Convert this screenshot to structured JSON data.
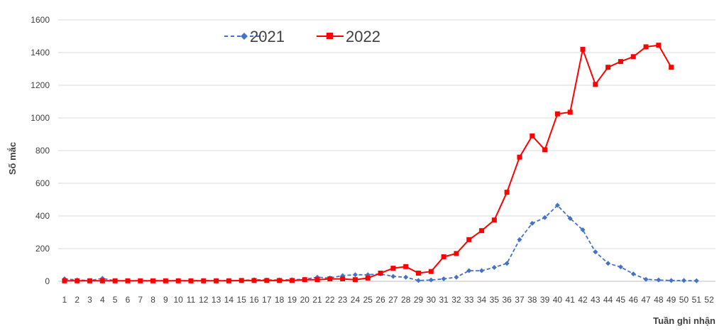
{
  "chart_data": {
    "type": "line",
    "xlabel": "Tuần ghi nhận",
    "ylabel": "Số mắc",
    "ylim": [
      0,
      1600
    ],
    "yticks": [
      0,
      200,
      400,
      600,
      800,
      1000,
      1200,
      1400,
      1600
    ],
    "x": [
      1,
      2,
      3,
      4,
      5,
      6,
      7,
      8,
      9,
      10,
      11,
      12,
      13,
      14,
      15,
      16,
      17,
      18,
      19,
      20,
      21,
      22,
      23,
      24,
      25,
      26,
      27,
      28,
      29,
      30,
      31,
      32,
      33,
      34,
      35,
      36,
      37,
      38,
      39,
      40,
      41,
      42,
      43,
      44,
      45,
      46,
      47,
      48,
      49,
      50,
      51,
      52
    ],
    "grid": true,
    "legend_position": "top-center",
    "series": [
      {
        "name": "2021",
        "color": "#4472C4",
        "style": "dashed",
        "marker": "diamond",
        "values": [
          15,
          8,
          5,
          18,
          3,
          3,
          3,
          3,
          3,
          5,
          3,
          5,
          3,
          5,
          5,
          10,
          8,
          8,
          10,
          12,
          25,
          20,
          35,
          40,
          40,
          45,
          30,
          25,
          5,
          8,
          15,
          25,
          65,
          65,
          85,
          110,
          255,
          355,
          390,
          465,
          385,
          315,
          180,
          110,
          88,
          45,
          12,
          8,
          5,
          5,
          3,
          null
        ]
      },
      {
        "name": "2022",
        "color": "#FF0000",
        "style": "solid",
        "marker": "square",
        "values": [
          3,
          3,
          3,
          3,
          3,
          3,
          3,
          3,
          3,
          3,
          3,
          3,
          3,
          3,
          5,
          5,
          5,
          5,
          5,
          10,
          10,
          15,
          15,
          10,
          20,
          50,
          80,
          90,
          50,
          60,
          150,
          170,
          255,
          310,
          375,
          545,
          760,
          890,
          805,
          1025,
          1035,
          1420,
          1205,
          1310,
          1345,
          1375,
          1435,
          1445,
          1310,
          null,
          null,
          null
        ]
      }
    ]
  }
}
